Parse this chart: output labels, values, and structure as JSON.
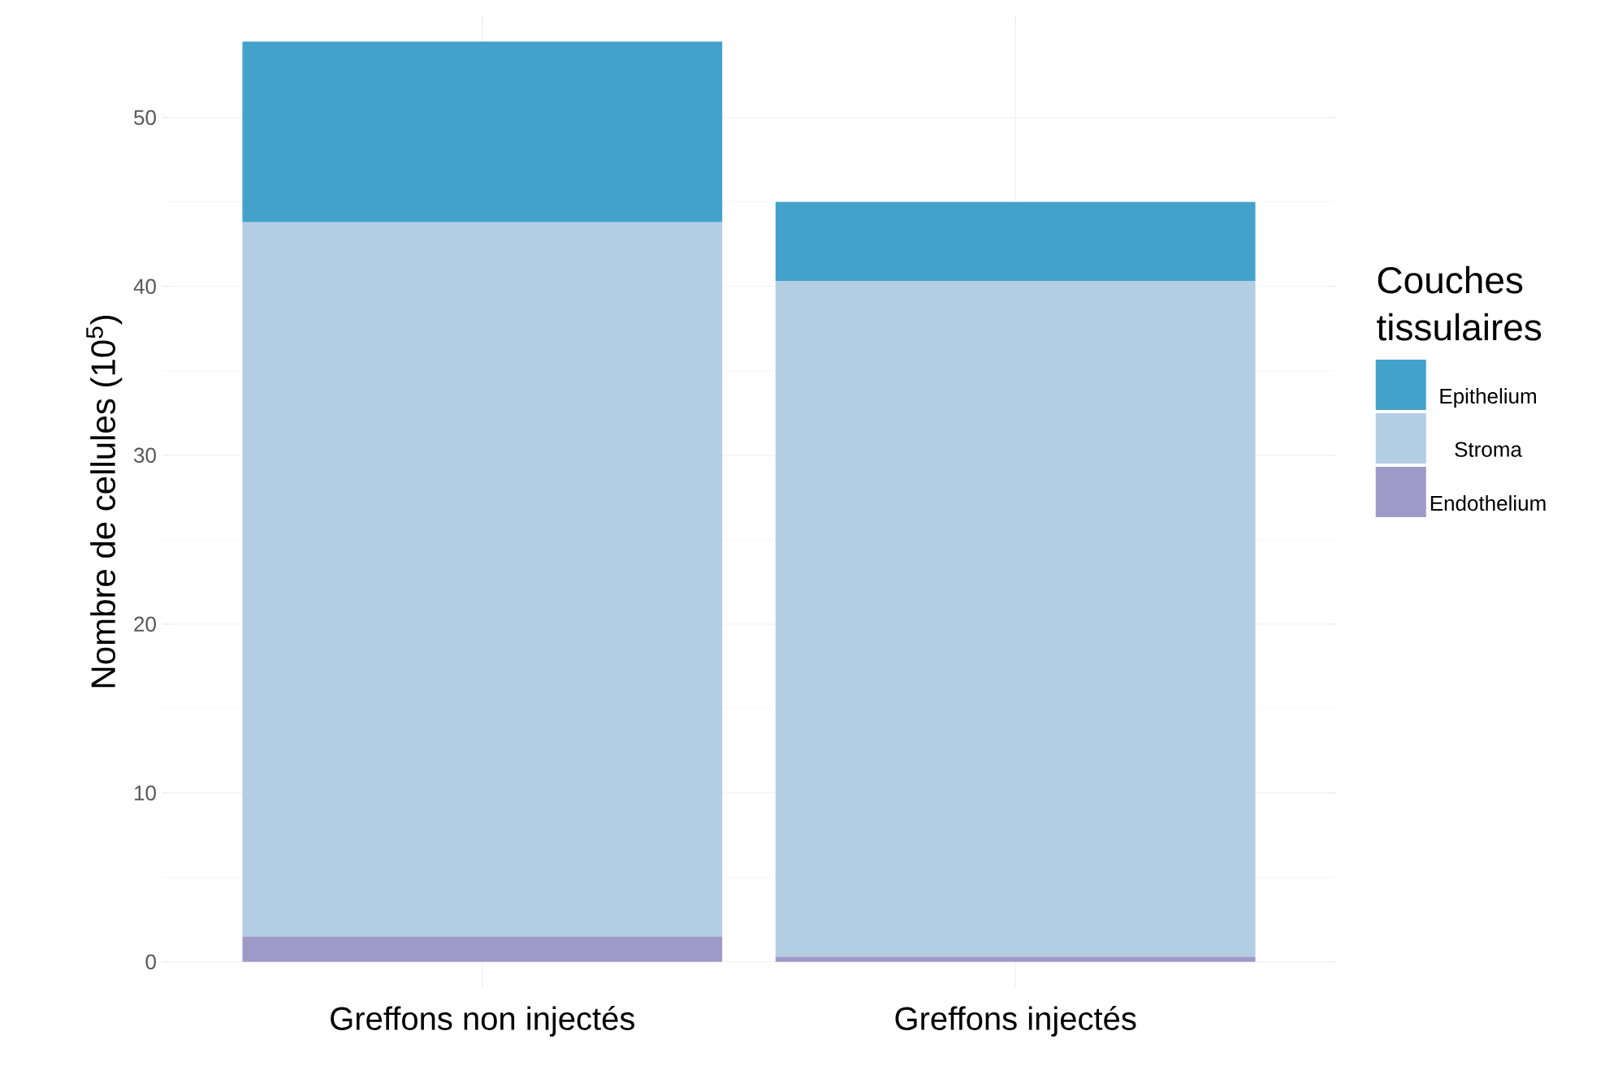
{
  "chart_data": {
    "type": "bar",
    "stacked": true,
    "ylabel": "Nombre de cellules (10$^{5}$)",
    "legend_title": "Couches tissulaires",
    "categories": [
      "Greffons non injectés",
      "Greffons injectés"
    ],
    "series": [
      {
        "name": "Endothelium",
        "color": "#9e9ac8",
        "values": [
          1.5,
          0.3
        ]
      },
      {
        "name": "Stroma",
        "color": "#b3cde3",
        "values": [
          42.3,
          40.0
        ]
      },
      {
        "name": "Epithelium",
        "color": "#43a2ca",
        "values": [
          10.7,
          4.7
        ]
      }
    ],
    "ylim": [
      -1.5,
      56
    ],
    "yticks": [
      0,
      10,
      20,
      30,
      40,
      50
    ],
    "grid": true,
    "legend": "right"
  }
}
